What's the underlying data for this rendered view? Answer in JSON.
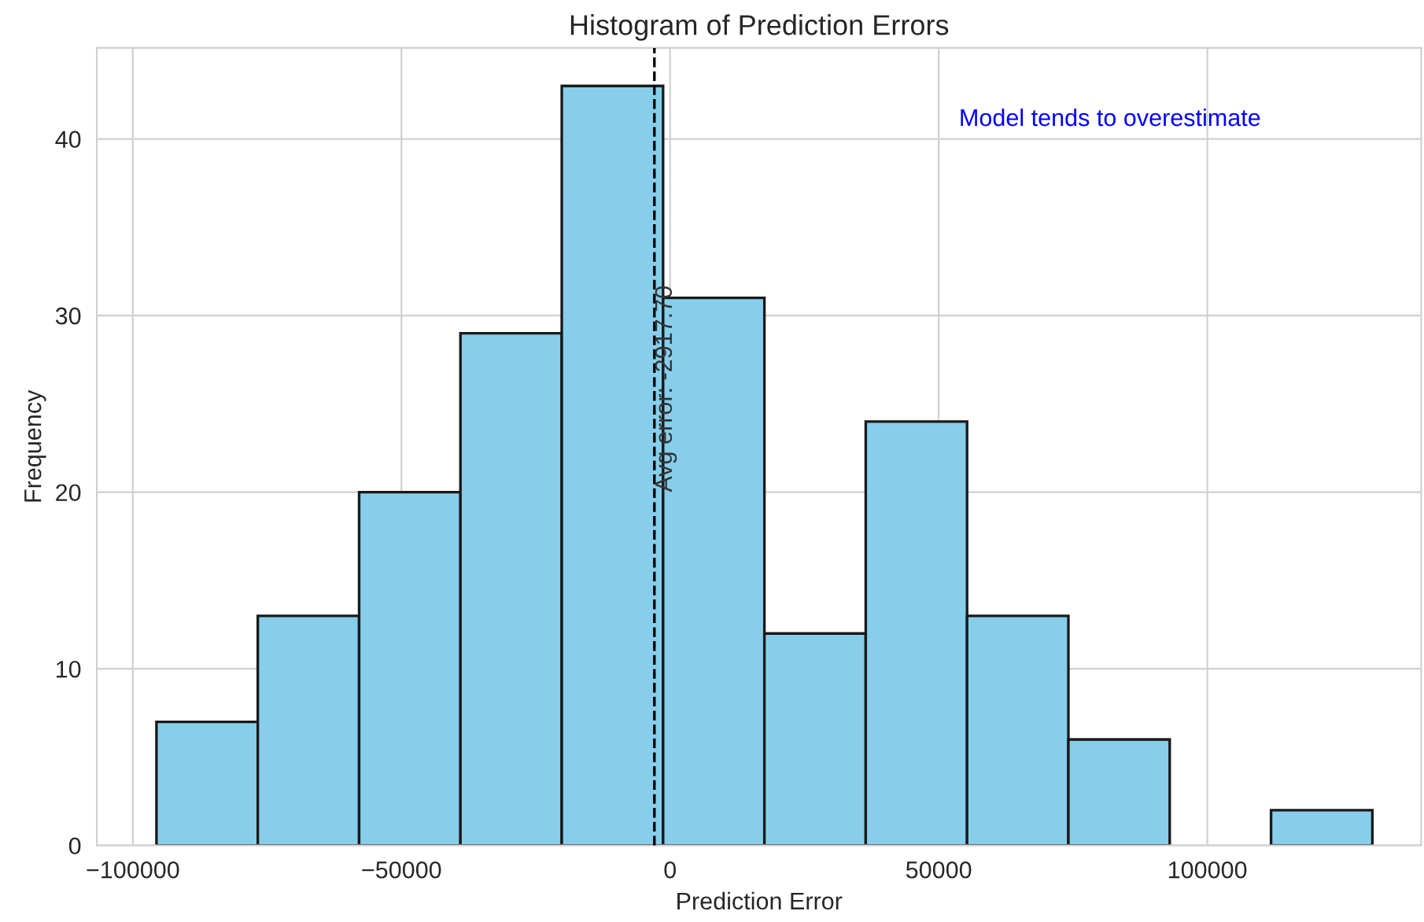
{
  "chart_data": {
    "type": "histogram",
    "title": "Histogram of Prediction Errors",
    "xlabel": "Prediction Error",
    "ylabel": "Frequency",
    "bins": [
      -95600,
      -76740,
      -57880,
      -39020,
      -20160,
      -1300,
      17560,
      36420,
      55280,
      74140,
      93000,
      111860,
      130720
    ],
    "values": [
      7,
      13,
      20,
      29,
      43,
      31,
      12,
      24,
      13,
      6,
      0,
      2
    ],
    "color": "#87ceeb",
    "xlim": [
      -106700,
      139800
    ],
    "ylim": [
      0,
      45.15
    ],
    "xticks": [
      {
        "value": -100000,
        "label": "−100000"
      },
      {
        "value": -50000,
        "label": "−50000"
      },
      0,
      50000,
      100000
    ],
    "yticks": [
      0,
      10,
      20,
      30,
      40
    ],
    "ref_lines": [
      {
        "axis": "x",
        "value": -2917.7,
        "label": "Avg error: -2917.70",
        "color": "#000000",
        "line_style": "dashed"
      }
    ],
    "annotations": [
      "Model tends to overestimate"
    ],
    "grid": true
  }
}
